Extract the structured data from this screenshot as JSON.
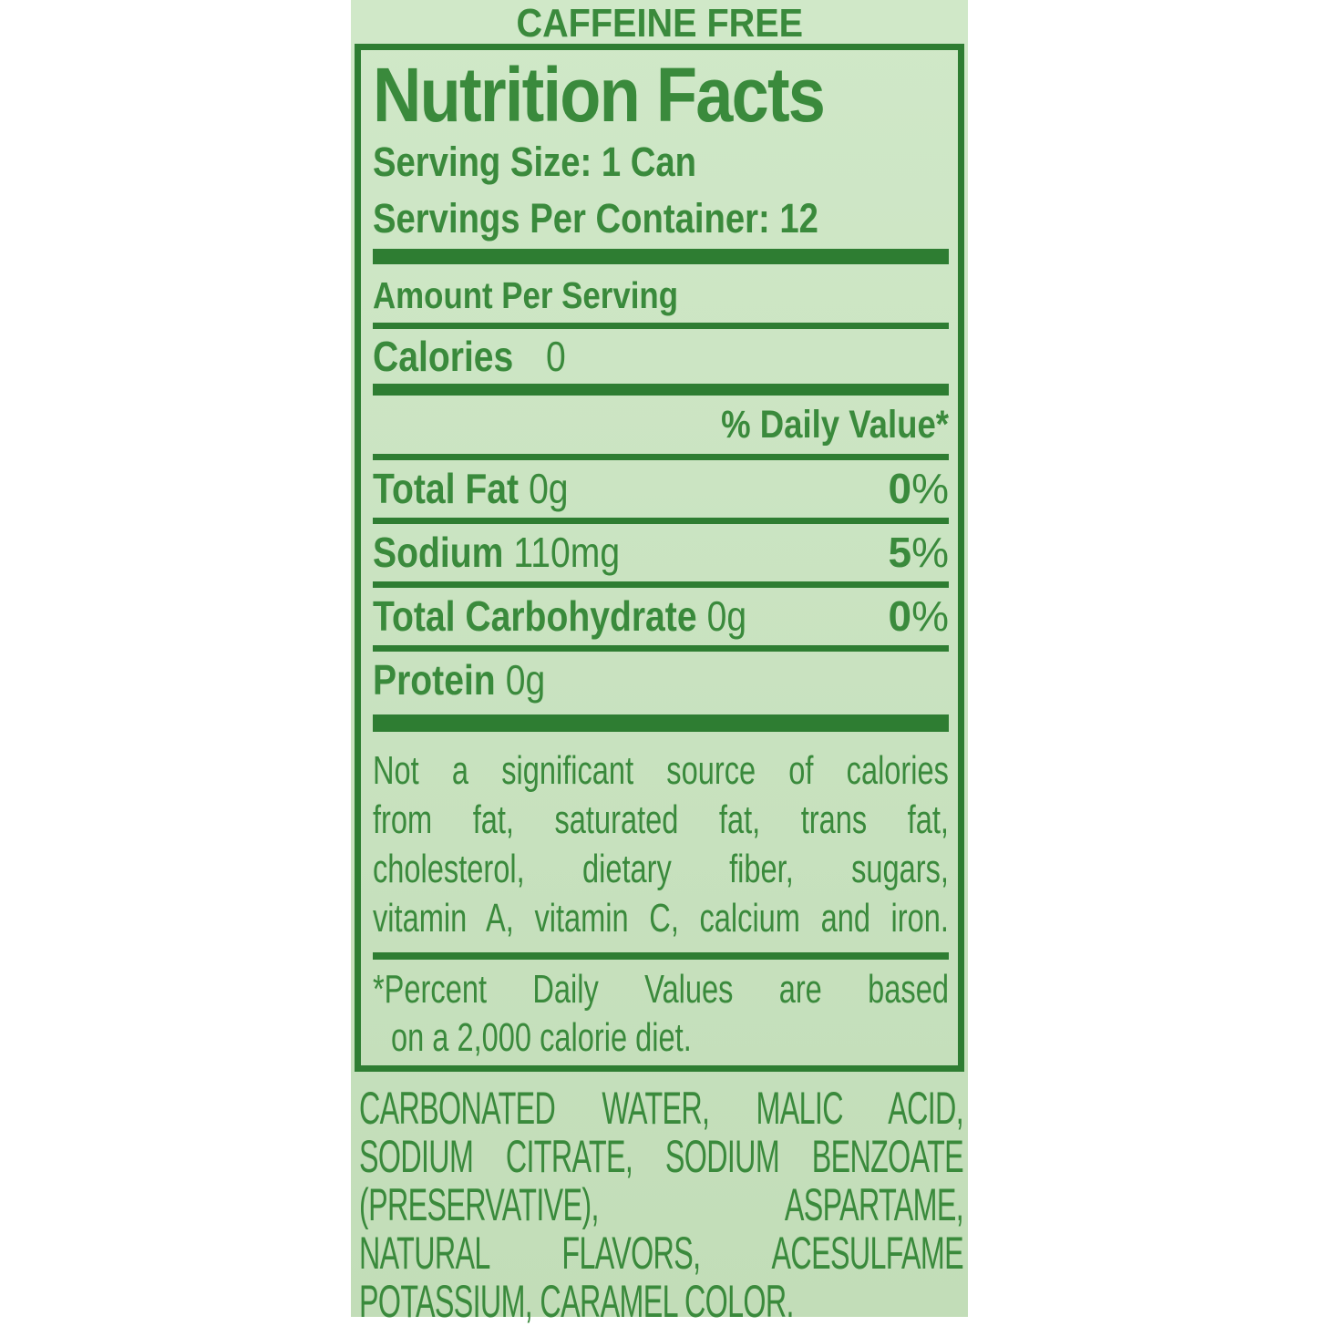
{
  "label": {
    "caffeine_free": "CAFFEINE FREE",
    "title": "Nutrition Facts",
    "serving_size": "Serving Size: 1 Can",
    "servings_per_container": "Servings Per Container: 12",
    "amount_per_serving": "Amount Per Serving",
    "calories": {
      "name": "Calories",
      "value": "0"
    },
    "daily_value_header": "% Daily Value*",
    "nutrients": [
      {
        "name": "Total Fat",
        "amount": "0g",
        "dv_num": "0",
        "dv_sign": "%"
      },
      {
        "name": "Sodium",
        "amount": "110mg",
        "dv_num": "5",
        "dv_sign": "%"
      },
      {
        "name": "Total Carbohydrate",
        "amount": "0g",
        "dv_num": "0",
        "dv_sign": "%"
      },
      {
        "name": "Protein",
        "amount": "0g",
        "dv_num": "",
        "dv_sign": ""
      }
    ],
    "disclaimer_lines": [
      "Not a significant source of calories",
      "from fat, saturated fat, trans fat,",
      "cholesterol, dietary fiber, sugars,",
      "vitamin A, vitamin C, calcium and iron."
    ],
    "footnote_lines": [
      "*Percent Daily Values are based",
      "on a 2,000 calorie diet."
    ],
    "ingredients_lines": [
      "CARBONATED WATER, MALIC ACID,",
      "SODIUM CITRATE, SODIUM BENZOATE",
      "(PRESERVATIVE), ASPARTAME,",
      "NATURAL FLAVORS, ACESULFAME",
      "POTASSIUM, CARAMEL COLOR."
    ]
  },
  "colors": {
    "text_green": "#3a8a3c",
    "rule_green": "#2e7d32",
    "panel_top": "#d0e8c8",
    "panel_bottom": "#c2ddb8",
    "page_bg": "#ffffff"
  }
}
